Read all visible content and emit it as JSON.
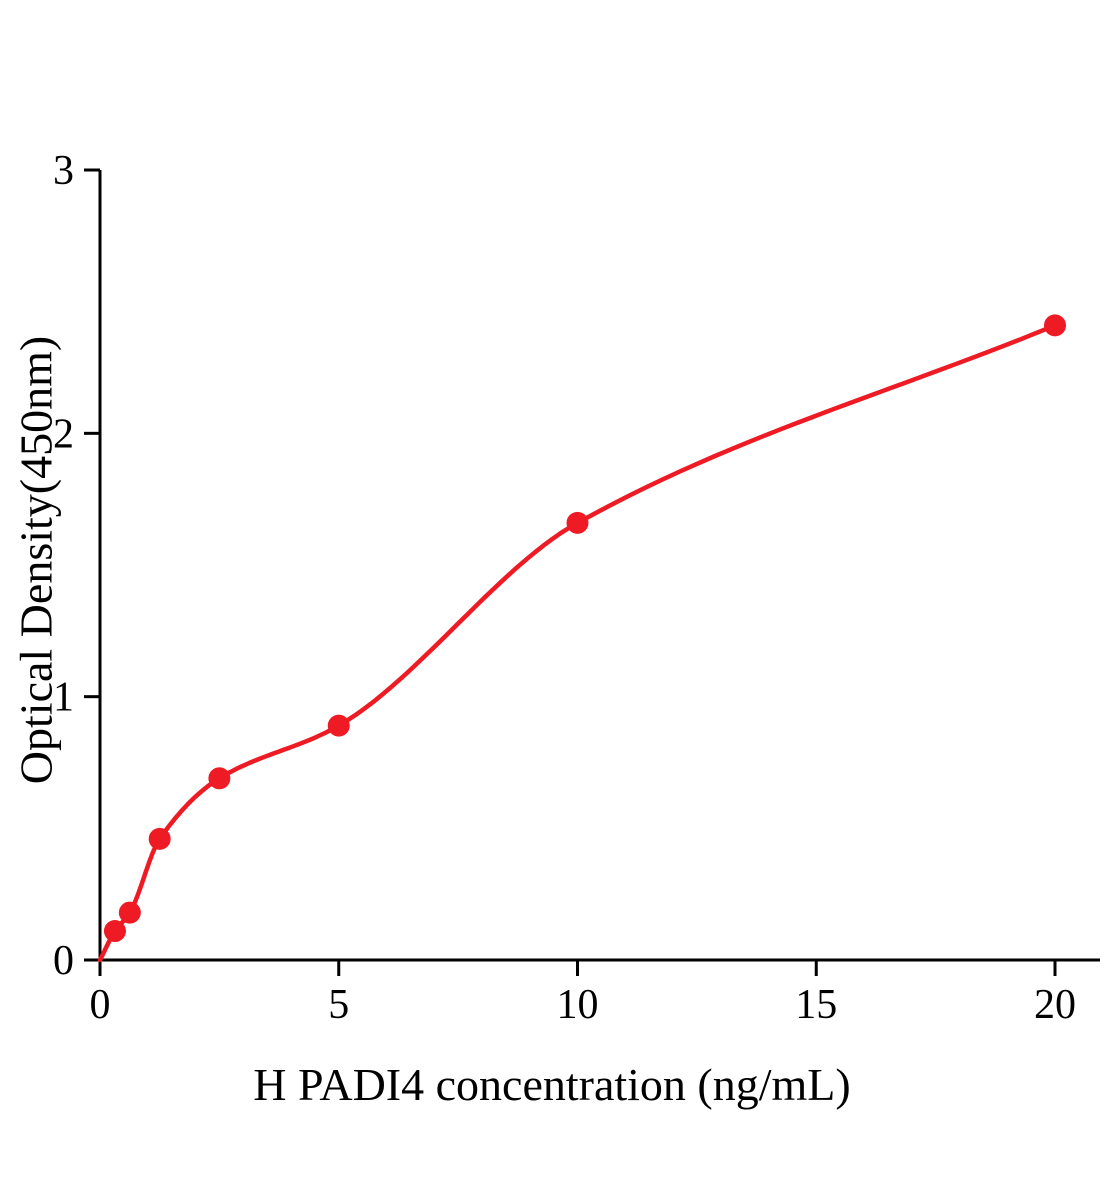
{
  "chart_data": {
    "type": "scatter",
    "title": "",
    "xlabel": "H PADI4 concentration (ng/mL)",
    "ylabel": "Optical Density(450nm)",
    "x": [
      0.313,
      0.625,
      1.25,
      2.5,
      5,
      10,
      20
    ],
    "y": [
      0.11,
      0.18,
      0.46,
      0.69,
      0.89,
      1.66,
      2.41
    ],
    "curve": "smooth fitted standard curve starting at origin through the points",
    "xlim": [
      0,
      20.9
    ],
    "ylim": [
      0,
      3
    ],
    "xticks": [
      0,
      5,
      10,
      15,
      20
    ],
    "yticks": [
      0,
      1,
      2,
      3
    ],
    "grid": false,
    "legend": "none",
    "point_color": "#ee1b24",
    "curve_color": "#ee1b24",
    "axis_color": "#000000"
  }
}
